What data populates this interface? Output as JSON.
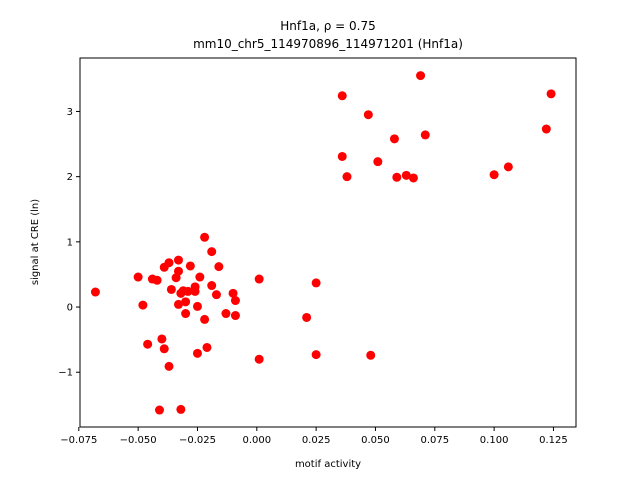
{
  "chart_data": {
    "type": "scatter",
    "title_line1": "Hnf1a, ρ = 0.75",
    "title_line2": "mm10_chr5_114970896_114971201 (Hnf1a)",
    "xlabel": "motif activity",
    "ylabel": "signal at CRE (ln)",
    "xlim": [
      -0.0745,
      0.1345
    ],
    "ylim": [
      -1.84,
      3.82
    ],
    "xticks": [
      -0.075,
      -0.05,
      -0.025,
      0.0,
      0.025,
      0.05,
      0.075,
      0.1,
      0.125
    ],
    "xtick_labels": [
      "−0.075",
      "−0.050",
      "−0.025",
      "0.000",
      "0.025",
      "0.050",
      "0.075",
      "0.100",
      "0.125"
    ],
    "yticks": [
      -1,
      0,
      1,
      2,
      3
    ],
    "ytick_labels": [
      "−1",
      "0",
      "1",
      "2",
      "3"
    ],
    "grid": false,
    "marker_color": "#ff0000",
    "points": [
      [
        -0.068,
        0.23
      ],
      [
        -0.05,
        0.46
      ],
      [
        -0.048,
        0.03
      ],
      [
        -0.046,
        -0.57
      ],
      [
        -0.044,
        0.43
      ],
      [
        -0.042,
        0.41
      ],
      [
        -0.041,
        -1.58
      ],
      [
        -0.04,
        -0.49
      ],
      [
        -0.039,
        -0.64
      ],
      [
        -0.039,
        0.61
      ],
      [
        -0.037,
        0.68
      ],
      [
        -0.037,
        -0.91
      ],
      [
        -0.036,
        0.27
      ],
      [
        -0.034,
        0.45
      ],
      [
        -0.033,
        0.72
      ],
      [
        -0.033,
        0.55
      ],
      [
        -0.033,
        0.04
      ],
      [
        -0.032,
        0.21
      ],
      [
        -0.032,
        -1.57
      ],
      [
        -0.031,
        0.25
      ],
      [
        -0.03,
        0.08
      ],
      [
        -0.03,
        -0.1
      ],
      [
        -0.029,
        0.24
      ],
      [
        -0.028,
        0.63
      ],
      [
        -0.026,
        0.31
      ],
      [
        -0.026,
        0.24
      ],
      [
        -0.025,
        0.01
      ],
      [
        -0.025,
        -0.71
      ],
      [
        -0.024,
        0.46
      ],
      [
        -0.022,
        1.07
      ],
      [
        -0.022,
        -0.19
      ],
      [
        -0.021,
        -0.62
      ],
      [
        -0.019,
        0.85
      ],
      [
        -0.019,
        0.33
      ],
      [
        -0.017,
        0.19
      ],
      [
        -0.016,
        0.62
      ],
      [
        -0.013,
        -0.1
      ],
      [
        -0.01,
        0.21
      ],
      [
        -0.009,
        0.1
      ],
      [
        -0.009,
        -0.13
      ],
      [
        0.001,
        0.43
      ],
      [
        0.001,
        -0.8
      ],
      [
        0.021,
        -0.16
      ],
      [
        0.025,
        0.37
      ],
      [
        0.025,
        -0.73
      ],
      [
        0.036,
        2.31
      ],
      [
        0.036,
        3.24
      ],
      [
        0.038,
        2.0
      ],
      [
        0.047,
        2.95
      ],
      [
        0.048,
        -0.74
      ],
      [
        0.051,
        2.23
      ],
      [
        0.058,
        2.58
      ],
      [
        0.059,
        1.99
      ],
      [
        0.063,
        2.02
      ],
      [
        0.066,
        1.98
      ],
      [
        0.069,
        3.55
      ],
      [
        0.071,
        2.64
      ],
      [
        0.1,
        2.03
      ],
      [
        0.106,
        2.15
      ],
      [
        0.122,
        2.73
      ],
      [
        0.124,
        3.27
      ]
    ]
  }
}
